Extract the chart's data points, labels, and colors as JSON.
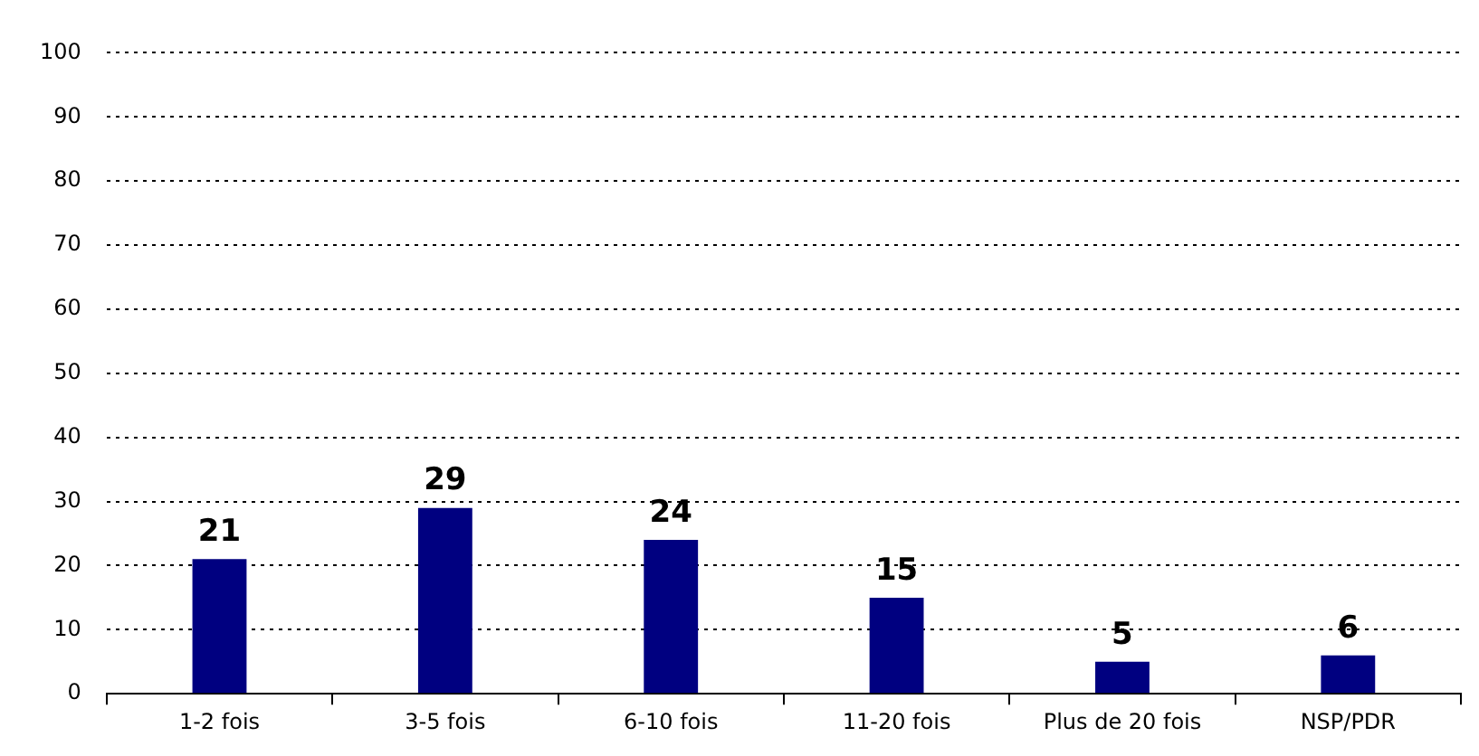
{
  "chart_data": {
    "type": "bar",
    "categories": [
      "1-2 fois",
      "3-5 fois",
      "6-10 fois",
      "11-20 fois",
      "Plus de 20 fois",
      "NSP/PDR"
    ],
    "values": [
      21,
      29,
      24,
      15,
      5,
      6
    ],
    "color": "#000080",
    "ylim": [
      0,
      100
    ],
    "yticks": [
      0,
      10,
      20,
      30,
      40,
      50,
      60,
      70,
      80,
      90,
      100
    ],
    "grid": "y",
    "data_labels": true,
    "legend": false
  }
}
